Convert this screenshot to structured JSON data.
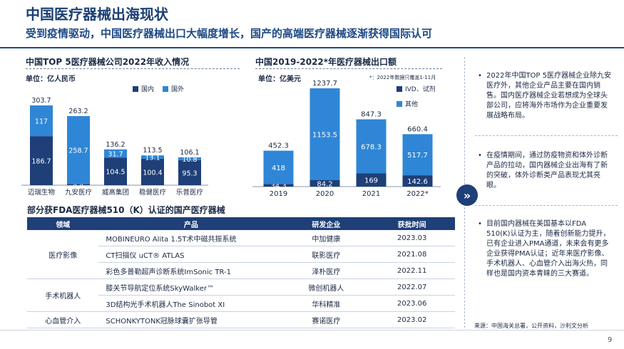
{
  "header": {
    "title": "中国医疗器械出海现状",
    "subtitle": "受到疫情驱动，中国医疗器械出口大幅度增长，国产的高端医疗器械逐渐获得国际认可"
  },
  "left_chart": {
    "title": "中国TOP 5医疗器械公司2022年收入情况",
    "unit": "单位：亿人民币",
    "legend": [
      "国内",
      "国外"
    ]
  },
  "right_chart": {
    "title": "中国2019-2022*年医疗器械出口额",
    "unit": "单位：亿美元",
    "note": "*：2022年数据只覆盖1-11月",
    "legend": [
      "IVD、试剂",
      "其他"
    ]
  },
  "chart_data": [
    {
      "type": "bar",
      "title": "中国TOP 5医疗器械公司2022年收入情况",
      "ylabel": "单位：亿人民币",
      "categories": [
        "迈瑞生物",
        "九安医疗",
        "威高集团",
        "稳健医疗",
        "乐普医疗"
      ],
      "series": [
        {
          "name": "国内",
          "values": [
            186.7,
            4.4,
            104.5,
            100.4,
            95.3
          ]
        },
        {
          "name": "国外",
          "values": [
            117.0,
            258.7,
            31.7,
            13.1,
            10.8
          ]
        }
      ],
      "totals": [
        303.7,
        263.2,
        136.2,
        113.5,
        106.1
      ],
      "colors": [
        "#1e3f77",
        "#2f86d6"
      ]
    },
    {
      "type": "bar",
      "title": "中国2019-2022*年医疗器械出口额",
      "ylabel": "单位：亿美元",
      "categories": [
        "2019",
        "2020",
        "2021",
        "2022*"
      ],
      "series": [
        {
          "name": "IVD、试剂",
          "values": [
            34.3,
            84.2,
            169.0,
            142.6
          ]
        },
        {
          "name": "其他",
          "values": [
            418.0,
            1153.5,
            678.3,
            517.7
          ]
        }
      ],
      "totals": [
        452.3,
        1237.7,
        847.3,
        660.4
      ],
      "colors": [
        "#1e3f77",
        "#2f86d6"
      ]
    }
  ],
  "table": {
    "title": "部分获FDA医疗器械510（K）认证的国产医疗器械",
    "headers": [
      "领域",
      "产品",
      "研发企业",
      "获批时间"
    ],
    "groups": [
      {
        "field": "医疗影像",
        "rows": [
          {
            "product": "MOBINEURO Alita 1.5T术中磁共振系统",
            "company": "中加健康",
            "date": "2023.03"
          },
          {
            "product": "CT扫描仪 uCT® ATLAS",
            "company": "联影医疗",
            "date": "2021.08"
          },
          {
            "product": "彩色多普勒超声诊断系统ImSonic TR-1",
            "company": "泽朴医疗",
            "date": "2022.11"
          }
        ]
      },
      {
        "field": "手术机器人",
        "rows": [
          {
            "product": "膝关节导航定位系统SkyWalker™",
            "company": "微创机器人",
            "date": "2022.07"
          },
          {
            "product": "3D结构光手术机器人The Sinobot XI",
            "company": "华科精准",
            "date": "2023.06"
          }
        ]
      },
      {
        "field": "心血管介入",
        "rows": [
          {
            "product": "SCHONKYTONK冠脉球囊扩张导管",
            "company": "赛诺医疗",
            "date": "2023.02"
          }
        ]
      }
    ]
  },
  "bullets": [
    "2022年中国TOP 5医疗器械企业除九安医疗外，其他企业产品主要在国内销售。国内医疗器械企业若想成为全球头部公司，应将海外市场作为企业重要发展战略布局。",
    "在疫情期间，通过防疫物资和体外诊断产品的拉动，国内器械企业出海有了新的突破，体外诊断类产品表现尤其亮眼。",
    "目前国内器械在美国基本以FDA 510(K)认证为主，随着创新能力提升，已有企业进入PMA通道，未来会有更多企业获得PMA认证；近年来医疗影像、手术机器人、心血管介入出海火热，同样也是国内资本青睐的三大赛道。"
  ],
  "footer": {
    "source": "来源：中国海关总署，公开资料，沙利文分析",
    "page": "9"
  }
}
